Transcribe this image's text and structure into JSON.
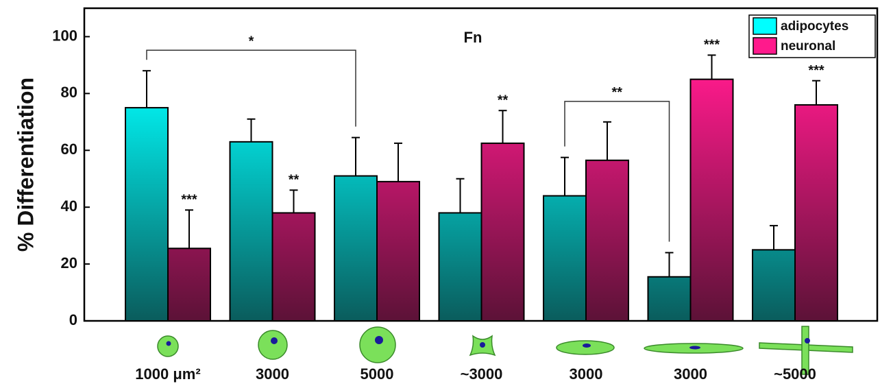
{
  "chart_data": {
    "type": "bar",
    "ylabel": "% Differentiation",
    "annotation": "Fn",
    "categories": [
      "1000 μm²",
      "3000",
      "5000",
      "~3000",
      "3000",
      "3000",
      "~5000"
    ],
    "series": [
      {
        "name": "adipocytes",
        "color": "#00ffff",
        "values": [
          75,
          63,
          51,
          38,
          44,
          15.5,
          25
        ],
        "errors": [
          13,
          8,
          13.5,
          12,
          13.5,
          8.5,
          8.5
        ],
        "significance": [
          null,
          null,
          null,
          null,
          null,
          null,
          null
        ]
      },
      {
        "name": "neuronal",
        "color": "#ff1a8c",
        "values": [
          25.5,
          38,
          49,
          62.5,
          56.5,
          85,
          76
        ],
        "errors": [
          13.5,
          8,
          13.5,
          11.5,
          13.5,
          8.5,
          8.5
        ],
        "significance": [
          "***",
          "**",
          null,
          "**",
          null,
          "***",
          "***"
        ]
      }
    ],
    "brackets": [
      {
        "label": "*",
        "series": 0,
        "groups": [
          0,
          2
        ]
      },
      {
        "label": "**",
        "series": 0,
        "groups": [
          4,
          5
        ]
      }
    ],
    "ylim": [
      0,
      110
    ],
    "yticks": [
      0,
      20,
      40,
      60,
      80,
      100
    ],
    "legend": "top-right"
  }
}
